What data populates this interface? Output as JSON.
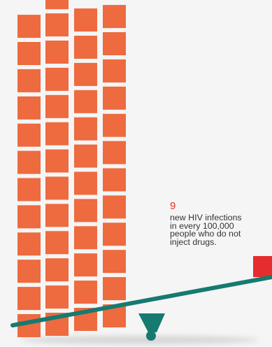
{
  "colors": {
    "background": "#f5f5f5",
    "block": "#ee6a3f",
    "highlight_block": "#e52d2d",
    "seesaw": "#167a70",
    "stat_number": "#e0312f",
    "text": "#333333"
  },
  "stat": {
    "number": "9",
    "lines": [
      "new HIV infections",
      "in every 100,000",
      "people who do not",
      "inject drugs."
    ]
  },
  "block_columns": [
    {
      "count": 12,
      "tilt_offset": 0
    },
    {
      "count": 13,
      "tilt_offset": 0
    },
    {
      "count": 12,
      "tilt_offset": 0
    },
    {
      "count": 12,
      "tilt_offset": 0
    }
  ]
}
